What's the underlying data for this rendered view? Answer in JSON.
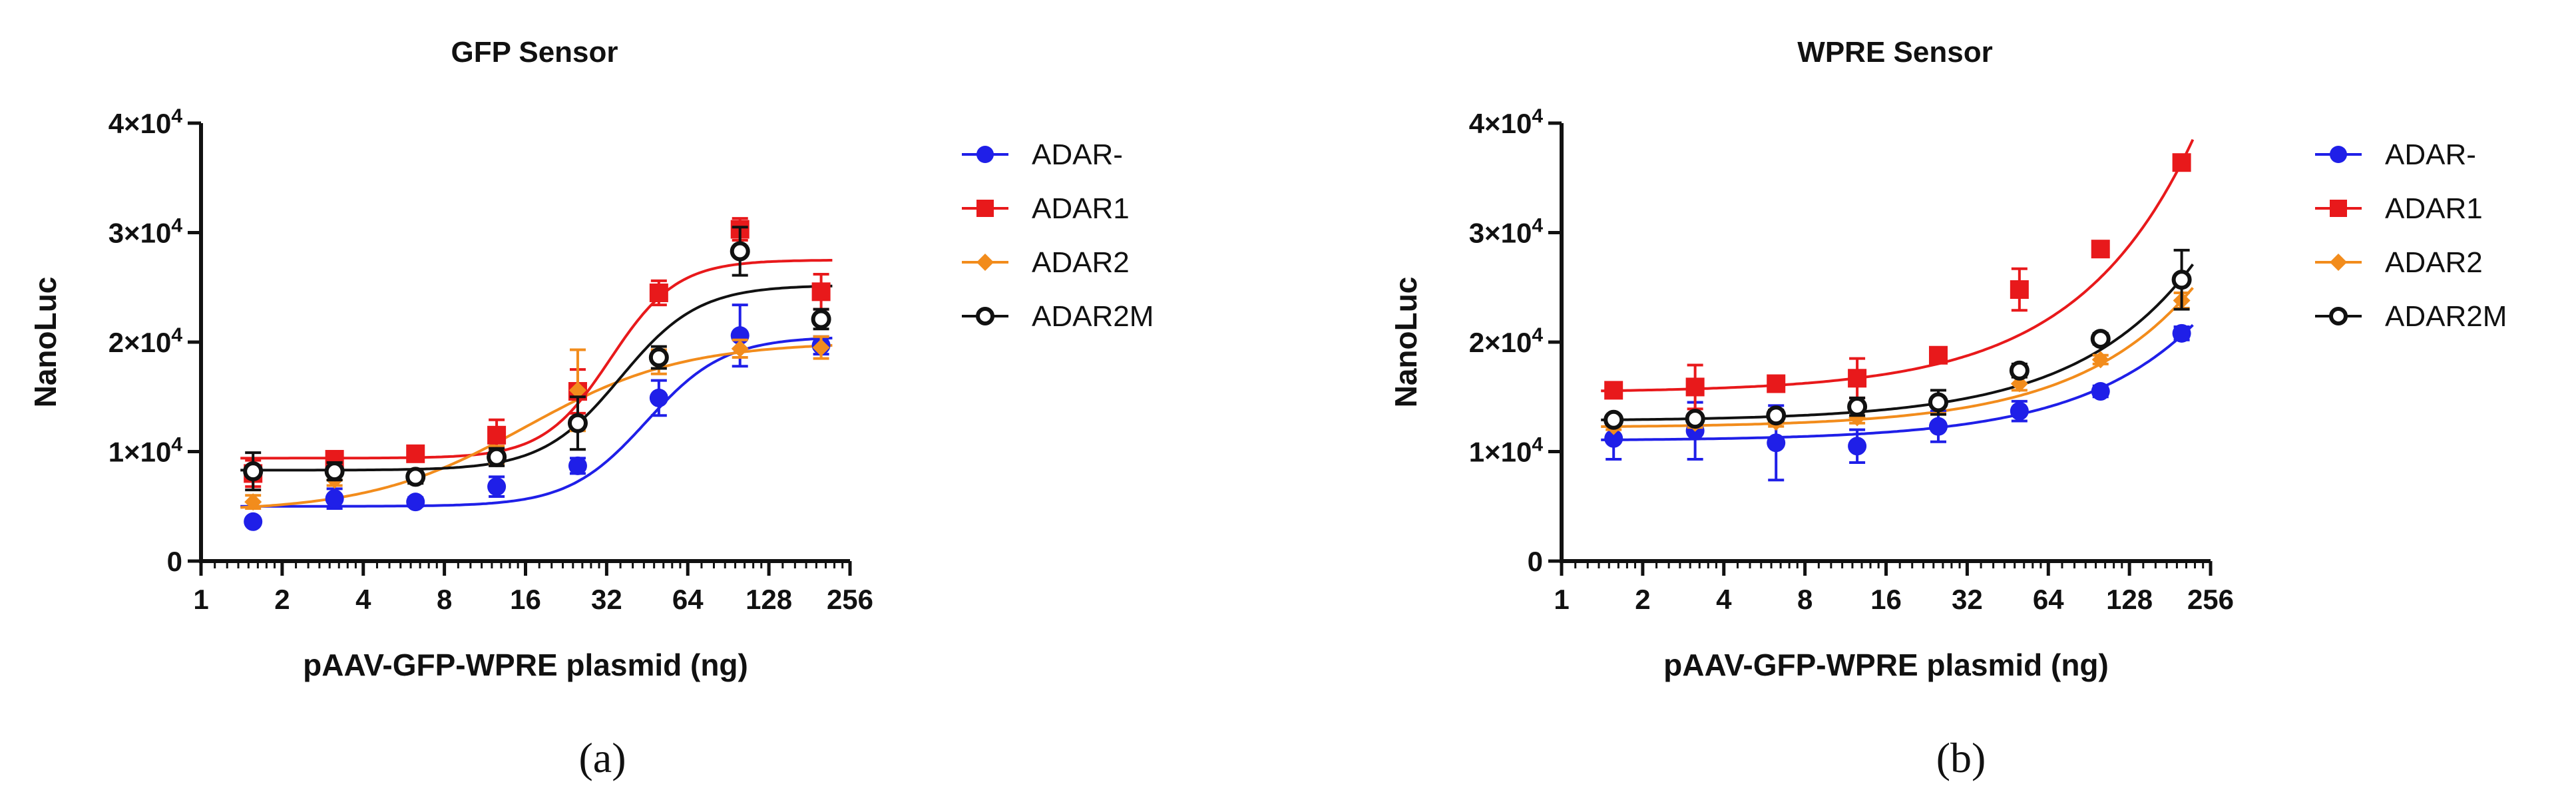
{
  "chart_data": [
    {
      "type": "scatter",
      "title": "GFP Sensor",
      "xlabel": "pAAV-GFP-WPRE plasmid (ng)",
      "ylabel": "NanoLuc",
      "xscale": "log2",
      "xlim": [
        1,
        256
      ],
      "ylim": [
        0,
        40000
      ],
      "x_ticks": [
        "1",
        "2",
        "4",
        "8",
        "16",
        "32",
        "64",
        "128",
        "256"
      ],
      "y_ticks": [
        {
          "mantissa": "0",
          "exponent": ""
        },
        {
          "mantissa": "1×10",
          "exponent": "4"
        },
        {
          "mantissa": "2×10",
          "exponent": "4"
        },
        {
          "mantissa": "3×10",
          "exponent": "4"
        },
        {
          "mantissa": "4×10",
          "exponent": "4"
        }
      ],
      "legend_position": "right",
      "panel_label": "(a)",
      "x": [
        1.56,
        3.13,
        6.25,
        12.5,
        25,
        50,
        100,
        200
      ],
      "series": [
        {
          "name": "ADAR-",
          "color": "#1f1fe8",
          "marker": "circle",
          "values": [
            3600,
            5700,
            5400,
            6800,
            8700,
            14900,
            20600,
            19700
          ],
          "errors": [
            0,
            900,
            400,
            900,
            700,
            1600,
            2800,
            800
          ],
          "fit": {
            "bottom": 5000,
            "top": 20500,
            "ec50": 45,
            "hill": 3
          }
        },
        {
          "name": "ADAR1",
          "color": "#e8191b",
          "marker": "square",
          "values": [
            8000,
            9300,
            9800,
            11500,
            15500,
            24500,
            30300,
            24600
          ],
          "errors": [
            1200,
            600,
            500,
            1400,
            2000,
            1100,
            1000,
            1600
          ],
          "fit": {
            "bottom": 9400,
            "top": 27500,
            "ec50": 33,
            "hill": 3.5
          }
        },
        {
          "name": "ADAR2",
          "color": "#f28c1c",
          "marker": "diamond",
          "values": [
            5400,
            7400,
            7700,
            9700,
            15600,
            18200,
            19400,
            19500
          ],
          "errors": [
            600,
            500,
            500,
            800,
            3700,
            1100,
            800,
            1000
          ],
          "fit": {
            "bottom": 4500,
            "top": 20000,
            "ec50": 16,
            "hill": 1.5
          }
        },
        {
          "name": "ADAR2M",
          "color": "#111111",
          "marker": "open-circle",
          "values": [
            8200,
            8200,
            7700,
            9500,
            12600,
            18600,
            28300,
            22100
          ],
          "errors": [
            1700,
            800,
            600,
            800,
            2400,
            1000,
            2200,
            900
          ],
          "fit": {
            "bottom": 8300,
            "top": 25200,
            "ec50": 36,
            "hill": 3
          }
        }
      ]
    },
    {
      "type": "scatter",
      "title": "WPRE Sensor",
      "xlabel": "pAAV-GFP-WPRE plasmid (ng)",
      "ylabel": "NanoLuc",
      "xscale": "log2",
      "xlim": [
        1,
        256
      ],
      "ylim": [
        0,
        40000
      ],
      "x_ticks": [
        "1",
        "2",
        "4",
        "8",
        "16",
        "32",
        "64",
        "128",
        "256"
      ],
      "y_ticks": [
        {
          "mantissa": "0",
          "exponent": ""
        },
        {
          "mantissa": "1×10",
          "exponent": "4"
        },
        {
          "mantissa": "2×10",
          "exponent": "4"
        },
        {
          "mantissa": "3×10",
          "exponent": "4"
        },
        {
          "mantissa": "4×10",
          "exponent": "4"
        }
      ],
      "legend_position": "right",
      "panel_label": "(b)",
      "x": [
        1.56,
        3.13,
        6.25,
        12.5,
        25,
        50,
        100,
        200
      ],
      "series": [
        {
          "name": "ADAR-",
          "color": "#1f1fe8",
          "marker": "circle",
          "values": [
            11200,
            11900,
            10800,
            10500,
            12300,
            13700,
            15500,
            20800
          ],
          "errors": [
            1900,
            2600,
            3400,
            1500,
            1400,
            900,
            500,
            600
          ],
          "fit": {
            "bottom": 11000,
            "slope": 48
          }
        },
        {
          "name": "ADAR1",
          "color": "#e8191b",
          "marker": "square",
          "values": [
            15600,
            15900,
            16200,
            16700,
            18800,
            24800,
            28500,
            36400
          ],
          "errors": [
            300,
            2000,
            400,
            1800,
            600,
            1900,
            500,
            500
          ],
          "fit": {
            "bottom": 15400,
            "slope": 105
          }
        },
        {
          "name": "ADAR2",
          "color": "#f28c1c",
          "marker": "diamond",
          "values": [
            12300,
            12600,
            12700,
            13100,
            14200,
            16200,
            18400,
            23800
          ],
          "errors": [
            300,
            400,
            400,
            500,
            700,
            600,
            400,
            700
          ],
          "fit": {
            "bottom": 12200,
            "slope": 58
          }
        },
        {
          "name": "ADAR2M",
          "color": "#111111",
          "marker": "open-circle",
          "values": [
            12900,
            13000,
            13300,
            14100,
            14500,
            17400,
            20300,
            25700
          ],
          "errors": [
            300,
            400,
            500,
            800,
            1100,
            600,
            500,
            2700
          ],
          "fit": {
            "bottom": 12800,
            "slope": 65
          }
        }
      ]
    }
  ]
}
